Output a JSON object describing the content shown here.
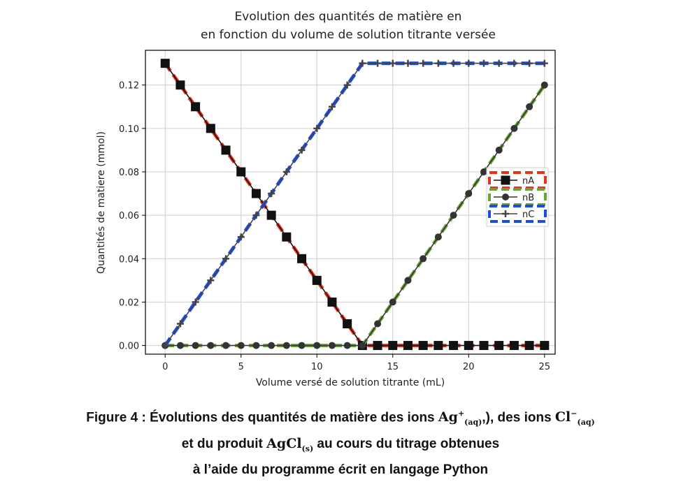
{
  "chart_data": {
    "type": "line",
    "title_lines": [
      "Evolution des quantités de matière en",
      "en fonction du volume de solution titrante versée"
    ],
    "xlabel": "Volume versé de solution titrante (mL)",
    "ylabel": "Quantités de matiere (mmol)",
    "xlim": [
      -1.3,
      25.7
    ],
    "ylim": [
      -0.004,
      0.136
    ],
    "xticks": [
      0,
      5,
      10,
      15,
      20,
      25
    ],
    "yticks": [
      0.0,
      0.02,
      0.04,
      0.06,
      0.08,
      0.1,
      0.12
    ],
    "xtick_labels": [
      "0",
      "5",
      "10",
      "15",
      "20",
      "25"
    ],
    "ytick_labels": [
      "0.00",
      "0.02",
      "0.04",
      "0.06",
      "0.08",
      "0.10",
      "0.12"
    ],
    "grid": true,
    "legend_position": "center-right",
    "x": [
      0,
      1,
      2,
      3,
      4,
      5,
      6,
      7,
      8,
      9,
      10,
      11,
      12,
      13,
      14,
      15,
      16,
      17,
      18,
      19,
      20,
      21,
      22,
      23,
      24,
      25
    ],
    "series": [
      {
        "name": "nA",
        "marker": "square",
        "color": "#111111",
        "dash_color": "#e8321e",
        "values": [
          0.13,
          0.12,
          0.11,
          0.1,
          0.09,
          0.08,
          0.07,
          0.06,
          0.05,
          0.04,
          0.03,
          0.02,
          0.01,
          0,
          0,
          0,
          0,
          0,
          0,
          0,
          0,
          0,
          0,
          0,
          0,
          0
        ]
      },
      {
        "name": "nB",
        "marker": "circle",
        "color": "#333333",
        "dash_color": "#6aa33a",
        "values": [
          0,
          0,
          0,
          0,
          0,
          0,
          0,
          0,
          0,
          0,
          0,
          0,
          0,
          0,
          0.01,
          0.02,
          0.03,
          0.04,
          0.05,
          0.06,
          0.07,
          0.08,
          0.09,
          0.1,
          0.11,
          0.12
        ]
      },
      {
        "name": "nC",
        "marker": "plus",
        "color": "#444444",
        "dash_color": "#1a4de8",
        "values": [
          0,
          0.01,
          0.02,
          0.03,
          0.04,
          0.05,
          0.06,
          0.07,
          0.08,
          0.09,
          0.1,
          0.11,
          0.12,
          0.13,
          0.13,
          0.13,
          0.13,
          0.13,
          0.13,
          0.13,
          0.13,
          0.13,
          0.13,
          0.13,
          0.13,
          0.13
        ]
      }
    ]
  },
  "caption": {
    "line1_a": "Figure 4 : Évolutions des quantités de matière des ions ",
    "ag": "Ag",
    "ag_sup": "+",
    "ag_sub": "(aq)",
    "line1_b": ",), des ions ",
    "cl": "Cl",
    "cl_sup": "−",
    "cl_sub": "(aq)",
    "line2_a": "et du produit ",
    "agcl": "AgCl",
    "agcl_sub": "(s)",
    "line2_b": " au cours du titrage obtenues",
    "line3": "à l’aide du programme écrit en langage Python"
  }
}
